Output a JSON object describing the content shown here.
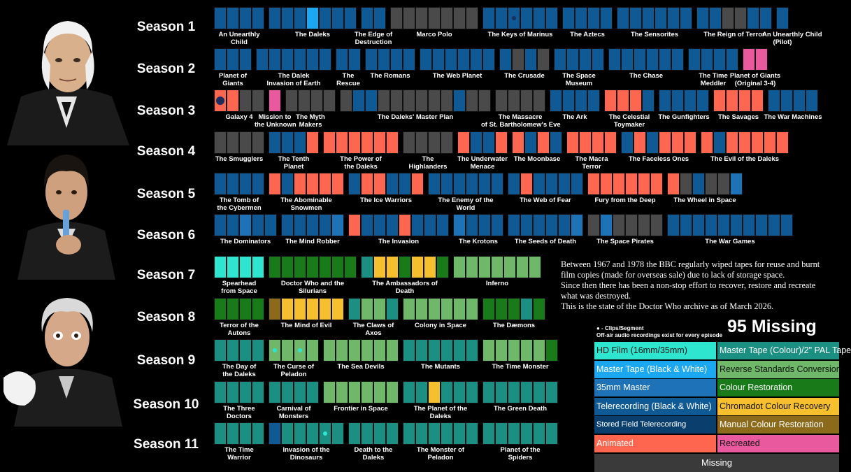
{
  "colors": {
    "hd": "#2ee6cf",
    "mtbw": "#1ca8f0",
    "mm35": "#1e73b8",
    "tele": "#0f5a94",
    "sfield": "#0a3f6d",
    "anim": "#ff6650",
    "missing": "#4a4a4a",
    "mtcol": "#1a8f82",
    "rsc": "#6fb86a",
    "colrest": "#197a19",
    "chroma": "#f6bf2e",
    "manual": "#8b6a1c",
    "recr": "#e85a9d",
    "dot": "#1b2e5e",
    "dotteal": "#2ee6cf"
  },
  "chart_data": {
    "type": "table",
    "title": "State of the Doctor Who archive (March 2026)",
    "missing_total": "95 Missing",
    "seasons": [
      {
        "label": "Season 1",
        "stories": [
          {
            "title": "An Unearthly\nChild",
            "episodes": [
              "tele",
              "tele",
              "tele",
              "tele"
            ]
          },
          {
            "title": "The Daleks",
            "episodes": [
              "tele",
              "tele",
              "tele",
              "mtbw",
              "tele",
              "tele",
              "tele"
            ]
          },
          {
            "title": "The Edge of\nDestruction",
            "episodes": [
              "tele",
              "tele"
            ]
          },
          {
            "title": "Marco Polo",
            "episodes": [
              "missing",
              "missing",
              "missing",
              "missing",
              "missing",
              "missing",
              "missing"
            ]
          },
          {
            "title": "The Keys of Marinus",
            "episodes": [
              "tele",
              "tele",
              "tele:dot",
              "tele",
              "tele",
              "tele"
            ]
          },
          {
            "title": "The Aztecs",
            "episodes": [
              "tele",
              "tele",
              "tele",
              "tele"
            ]
          },
          {
            "title": "The Sensorites",
            "episodes": [
              "tele",
              "tele",
              "tele",
              "tele",
              "tele",
              "tele"
            ]
          },
          {
            "title": "The Reign of Terror",
            "episodes": [
              "tele",
              "tele",
              "missing",
              "missing",
              "tele",
              "tele"
            ]
          },
          {
            "title": "An Unearthly Child\n(Pilot)",
            "episodes": [
              "tele"
            ]
          }
        ]
      },
      {
        "label": "Season 2",
        "stories": [
          {
            "title": "Planet of\nGiants",
            "episodes": [
              "tele",
              "tele",
              "tele"
            ]
          },
          {
            "title": "The Dalek\nInvasion of Earth",
            "episodes": [
              "tele",
              "tele",
              "tele",
              "tele",
              "tele",
              "tele"
            ]
          },
          {
            "title": "The\nRescue",
            "episodes": [
              "tele",
              "tele"
            ]
          },
          {
            "title": "The Romans",
            "episodes": [
              "tele",
              "tele",
              "tele",
              "tele"
            ]
          },
          {
            "title": "The Web Planet",
            "episodes": [
              "tele",
              "tele",
              "tele",
              "tele",
              "tele",
              "tele"
            ]
          },
          {
            "title": "The Crusade",
            "episodes": [
              "tele",
              "missing",
              "tele",
              "missing"
            ]
          },
          {
            "title": "The Space\nMuseum",
            "episodes": [
              "tele",
              "tele",
              "tele",
              "tele"
            ]
          },
          {
            "title": "The Chase",
            "episodes": [
              "tele",
              "tele",
              "tele",
              "tele",
              "tele",
              "tele"
            ]
          },
          {
            "title": "The Time\nMeddler",
            "episodes": [
              "tele",
              "tele",
              "tele",
              "tele"
            ]
          },
          {
            "title": "Planet of Giants\n(Original 3-4)",
            "episodes": [
              "recr",
              "recr"
            ]
          }
        ]
      },
      {
        "label": "Season 3",
        "stories": [
          {
            "title": "Galaxy 4",
            "episodes": [
              "anim:dot",
              "anim",
              "missing",
              "missing"
            ]
          },
          {
            "title": "Mission to\nthe Unknown",
            "episodes": [
              "recr"
            ]
          },
          {
            "title": "The Myth\nMakers",
            "episodes": [
              "missing",
              "missing",
              "missing",
              "missing"
            ]
          },
          {
            "title": "The Daleks' Master Plan",
            "episodes": [
              "missing",
              "tele",
              "tele",
              "missing",
              "missing",
              "missing",
              "missing",
              "missing",
              "missing",
              "tele",
              "missing",
              "missing"
            ]
          },
          {
            "title": "The Massacre\nof St. Bartholomew's Eve",
            "episodes": [
              "missing",
              "missing",
              "missing",
              "missing"
            ]
          },
          {
            "title": "The Ark",
            "episodes": [
              "tele",
              "tele",
              "tele",
              "tele"
            ]
          },
          {
            "title": "The Celestial\nToymaker",
            "episodes": [
              "anim",
              "anim",
              "anim",
              "tele"
            ]
          },
          {
            "title": "The Gunfighters",
            "episodes": [
              "tele",
              "tele",
              "tele",
              "tele"
            ]
          },
          {
            "title": "The Savages",
            "episodes": [
              "anim",
              "anim",
              "anim",
              "anim"
            ]
          },
          {
            "title": "The War Machines",
            "episodes": [
              "tele",
              "tele",
              "tele",
              "tele"
            ]
          }
        ]
      },
      {
        "label": "Season 4",
        "stories": [
          {
            "title": "The Smugglers",
            "episodes": [
              "missing",
              "missing",
              "missing",
              "missing"
            ]
          },
          {
            "title": "The Tenth\nPlanet",
            "episodes": [
              "tele",
              "tele",
              "tele",
              "anim"
            ]
          },
          {
            "title": "The Power of\nthe Daleks",
            "episodes": [
              "anim",
              "anim",
              "anim",
              "anim",
              "anim",
              "anim"
            ]
          },
          {
            "title": "The\nHighlanders",
            "episodes": [
              "missing",
              "missing",
              "missing",
              "missing"
            ]
          },
          {
            "title": "The Underwater\nMenace",
            "episodes": [
              "anim",
              "tele",
              "tele",
              "anim"
            ]
          },
          {
            "title": "The Moonbase",
            "episodes": [
              "anim",
              "tele",
              "anim",
              "tele"
            ]
          },
          {
            "title": "The Macra\nTerror",
            "episodes": [
              "anim",
              "anim",
              "anim",
              "anim"
            ]
          },
          {
            "title": "The Faceless Ones",
            "episodes": [
              "tele",
              "anim",
              "tele",
              "anim",
              "anim",
              "anim"
            ]
          },
          {
            "title": "The Evil of the Daleks",
            "episodes": [
              "anim",
              "tele",
              "anim",
              "anim",
              "anim",
              "anim",
              "anim"
            ]
          }
        ]
      },
      {
        "label": "Season 5",
        "stories": [
          {
            "title": "The Tomb of\nthe Cybermen",
            "episodes": [
              "tele",
              "tele",
              "tele",
              "tele"
            ]
          },
          {
            "title": "The Abominable\nSnowmen",
            "episodes": [
              "anim",
              "tele",
              "anim",
              "anim",
              "anim",
              "anim"
            ]
          },
          {
            "title": "The Ice Warriors",
            "episodes": [
              "tele",
              "anim",
              "anim",
              "tele",
              "tele",
              "anim"
            ]
          },
          {
            "title": "The Enemy of the\nWorld",
            "episodes": [
              "tele",
              "tele",
              "tele",
              "tele",
              "tele",
              "tele"
            ]
          },
          {
            "title": "The Web of Fear",
            "episodes": [
              "tele",
              "anim",
              "tele",
              "tele",
              "tele",
              "tele"
            ]
          },
          {
            "title": "Fury from the Deep",
            "episodes": [
              "anim",
              "anim",
              "anim",
              "anim",
              "anim",
              "anim"
            ]
          },
          {
            "title": "The Wheel in Space",
            "episodes": [
              "anim",
              "missing",
              "tele",
              "missing",
              "missing",
              "mm35"
            ]
          }
        ]
      },
      {
        "label": "Season 6",
        "stories": [
          {
            "title": "The Dominators",
            "episodes": [
              "tele",
              "tele",
              "mm35",
              "tele",
              "tele"
            ]
          },
          {
            "title": "The Mind Robber",
            "episodes": [
              "tele",
              "tele",
              "tele",
              "tele",
              "mm35"
            ]
          },
          {
            "title": "The Invasion",
            "episodes": [
              "anim",
              "tele",
              "tele",
              "tele",
              "anim",
              "tele",
              "tele",
              "tele"
            ]
          },
          {
            "title": "The Krotons",
            "episodes": [
              "mm35",
              "tele",
              "tele",
              "tele"
            ]
          },
          {
            "title": "The Seeds of Death",
            "episodes": [
              "tele",
              "tele",
              "tele",
              "tele",
              "tele",
              "mm35"
            ]
          },
          {
            "title": "The Space Pirates",
            "episodes": [
              "missing",
              "mm35",
              "missing",
              "missing",
              "missing",
              "missing"
            ]
          },
          {
            "title": "The War Games",
            "episodes": [
              "tele",
              "tele",
              "tele",
              "tele",
              "tele",
              "tele",
              "tele",
              "tele",
              "tele",
              "tele"
            ]
          }
        ]
      },
      {
        "label": "Season 7",
        "stories": [
          {
            "title": "Spearhead\nfrom Space",
            "episodes": [
              "hd",
              "hd",
              "hd",
              "hd"
            ]
          },
          {
            "title": "Doctor Who and the\nSilurians",
            "episodes": [
              "colrest",
              "colrest",
              "colrest",
              "colrest",
              "colrest",
              "colrest",
              "colrest"
            ]
          },
          {
            "title": "The Ambassadors of\nDeath",
            "episodes": [
              "mtcol",
              "chroma",
              "chroma",
              "colrest",
              "chroma",
              "chroma",
              "colrest"
            ]
          },
          {
            "title": "Inferno",
            "episodes": [
              "rsc",
              "rsc",
              "rsc",
              "rsc",
              "rsc",
              "rsc",
              "rsc"
            ]
          }
        ]
      },
      {
        "label": "Season 8",
        "stories": [
          {
            "title": "Terror of the\nAutons",
            "episodes": [
              "colrest",
              "colrest",
              "colrest",
              "colrest"
            ]
          },
          {
            "title": "The Mind of Evil",
            "episodes": [
              "manual",
              "chroma",
              "chroma",
              "chroma",
              "chroma",
              "chroma"
            ]
          },
          {
            "title": "The Claws of\nAxos",
            "episodes": [
              "mtcol",
              "rsc",
              "rsc",
              "mtcol"
            ]
          },
          {
            "title": "Colony in Space",
            "episodes": [
              "rsc",
              "rsc",
              "rsc",
              "rsc",
              "rsc",
              "rsc"
            ]
          },
          {
            "title": "The Dæmons",
            "episodes": [
              "colrest",
              "colrest",
              "colrest",
              "mtcol",
              "colrest"
            ]
          }
        ]
      },
      {
        "label": "Season 9",
        "stories": [
          {
            "title": "The Day of\nthe Daleks",
            "episodes": [
              "mtcol",
              "mtcol",
              "mtcol",
              "mtcol"
            ]
          },
          {
            "title": "The Curse of\nPeladon",
            "episodes": [
              "rsc:dot",
              "rsc",
              "rsc:dot",
              "rsc"
            ]
          },
          {
            "title": "The Sea Devils",
            "episodes": [
              "rsc",
              "rsc",
              "rsc",
              "rsc",
              "rsc",
              "rsc"
            ]
          },
          {
            "title": "The Mutants",
            "episodes": [
              "mtcol",
              "mtcol",
              "mtcol",
              "mtcol",
              "mtcol",
              "mtcol"
            ]
          },
          {
            "title": "The Time Monster",
            "episodes": [
              "rsc",
              "rsc",
              "rsc",
              "rsc",
              "rsc",
              "colrest"
            ]
          }
        ]
      },
      {
        "label": "Season 10",
        "stories": [
          {
            "title": "The Three\nDoctors",
            "episodes": [
              "mtcol",
              "mtcol",
              "mtcol",
              "mtcol"
            ]
          },
          {
            "title": "Carnival of\nMonsters",
            "episodes": [
              "mtcol",
              "mtcol",
              "mtcol",
              "mtcol"
            ]
          },
          {
            "title": "Frontier in Space",
            "episodes": [
              "rsc",
              "rsc",
              "rsc",
              "rsc",
              "rsc",
              "rsc"
            ]
          },
          {
            "title": "The Planet of the\nDaleks",
            "episodes": [
              "mtcol",
              "mtcol",
              "chroma",
              "mtcol",
              "mtcol",
              "mtcol"
            ]
          },
          {
            "title": "The Green Death",
            "episodes": [
              "mtcol",
              "mtcol",
              "mtcol",
              "mtcol",
              "mtcol",
              "mtcol"
            ]
          }
        ]
      },
      {
        "label": "Season 11",
        "stories": [
          {
            "title": "The Time\nWarrior",
            "episodes": [
              "mtcol",
              "mtcol",
              "mtcol",
              "mtcol"
            ]
          },
          {
            "title": "Invasion of the\nDinosaurs",
            "episodes": [
              "tele",
              "mtcol",
              "mtcol",
              "mtcol",
              "mtcol:dot",
              "mtcol"
            ]
          },
          {
            "title": "Death to the\nDaleks",
            "episodes": [
              "mtcol",
              "mtcol",
              "mtcol",
              "mtcol"
            ]
          },
          {
            "title": "The Monster of\nPeladon",
            "episodes": [
              "mtcol",
              "mtcol",
              "mtcol",
              "mtcol",
              "mtcol",
              "mtcol"
            ]
          },
          {
            "title": "Planet of the\nSpiders",
            "episodes": [
              "mtcol",
              "mtcol",
              "mtcol",
              "mtcol",
              "mtcol",
              "mtcol"
            ]
          }
        ]
      }
    ],
    "legend": [
      {
        "key": "hd",
        "label": "HD Film (16mm/35mm)"
      },
      {
        "key": "mtcol",
        "label": "Master Tape (Colour)/2\" PAL Tape"
      },
      {
        "key": "mtbw",
        "label": "Master Tape (Black & White)"
      },
      {
        "key": "rsc",
        "label": "Reverse Standards Conversion"
      },
      {
        "key": "mm35",
        "label": "35mm Master"
      },
      {
        "key": "colrest",
        "label": "Colour Restoration"
      },
      {
        "key": "tele",
        "label": "Telerecording (Black & White)"
      },
      {
        "key": "chroma",
        "label": "Chromadot Colour Recovery"
      },
      {
        "key": "sfield",
        "label": "Stored Field Telerecording"
      },
      {
        "key": "manual",
        "label": "Manual Colour Restoration"
      },
      {
        "key": "anim",
        "label": "Animated"
      },
      {
        "key": "recr",
        "label": "Recreated"
      }
    ],
    "legend_missing": "Missing",
    "clip_note_1": "● - Clips/Segment",
    "clip_note_2": "Off-air audio recordings exist for every episode"
  },
  "note": {
    "p1": "Between 1967 and 1978 the BBC regularly wiped tapes for reuse and burnt film copies (made for overseas sale) due to lack of storage space.",
    "p2": "Since then there has been a non-stop effort to recover, restore and recreate what was destroyed.",
    "p3": "This is the state of the Doctor Who archive as of March 2026."
  }
}
